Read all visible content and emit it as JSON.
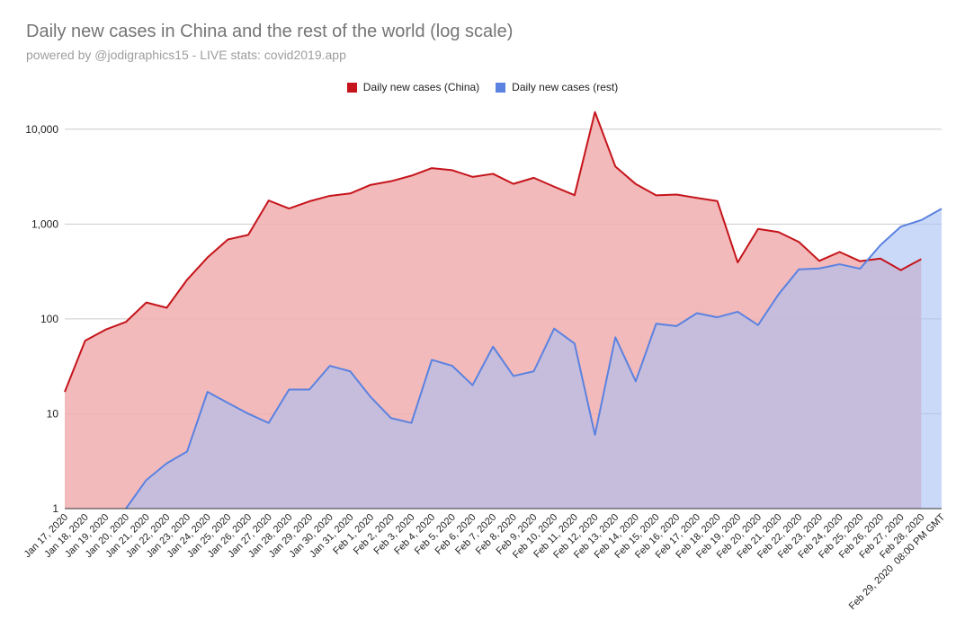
{
  "title": "Daily new cases in China and the rest of the world (log scale)",
  "subtitle": "powered by @jodigraphics15 - LIVE stats: covid2019.app",
  "colors": {
    "china_line": "#c5141b",
    "china_fill": "#f0aeae",
    "rest_line": "#5b82e0",
    "rest_fill": "#a9bff5",
    "grid": "#cccccc",
    "axis": "#333333"
  },
  "chart_data": {
    "type": "area",
    "scale": "log",
    "title": "Daily new cases in China and the rest of the world (log scale)",
    "ylim": [
      1,
      20000
    ],
    "yticks": [
      1,
      10,
      100,
      1000,
      10000
    ],
    "ytick_labels": [
      "1",
      "10",
      "100",
      "1,000",
      "10,000"
    ],
    "legend_position": "top-center",
    "grid": true,
    "categories": [
      "Jan 17, 2020",
      "Jan 18, 2020",
      "Jan 19, 2020",
      "Jan 20, 2020",
      "Jan 21, 2020",
      "Jan 22, 2020",
      "Jan 23, 2020",
      "Jan 24, 2020",
      "Jan 25, 2020",
      "Jan 26, 2020",
      "Jan 27, 2020",
      "Jan 28, 2020",
      "Jan 29, 2020",
      "Jan 30, 2020",
      "Jan 31, 2020",
      "Feb 1, 2020",
      "Feb 2, 2020",
      "Feb 3, 2020",
      "Feb 4, 2020",
      "Feb 5, 2020",
      "Feb 6, 2020",
      "Feb 7, 2020",
      "Feb 8, 2020",
      "Feb 9, 2020",
      "Feb 10, 2020",
      "Feb 11, 2020",
      "Feb 12, 2020",
      "Feb 13, 2020",
      "Feb 14, 2020",
      "Feb 15, 2020",
      "Feb 16, 2020",
      "Feb 17, 2020",
      "Feb 18, 2020",
      "Feb 19, 2020",
      "Feb 20, 2020",
      "Feb 21, 2020",
      "Feb 22, 2020",
      "Feb 23, 2020",
      "Feb 24, 2020",
      "Feb 25, 2020",
      "Feb 26, 2020",
      "Feb 27, 2020",
      "Feb 28, 2020",
      "Feb 29, 2020  08:00 PM GMT"
    ],
    "series": [
      {
        "name": "Daily new cases (China)",
        "values": [
          17,
          59,
          77,
          93,
          149,
          131,
          259,
          444,
          688,
          769,
          1771,
          1459,
          1737,
          1982,
          2102,
          2590,
          2829,
          3235,
          3887,
          3694,
          3143,
          3385,
          2652,
          3073,
          2478,
          2015,
          15152,
          4050,
          2641,
          2009,
          2048,
          1886,
          1749,
          394,
          889,
          823,
          648,
          409,
          508,
          406,
          433,
          327,
          427,
          null
        ]
      },
      {
        "name": "Daily new cases (rest)",
        "values": [
          null,
          null,
          null,
          1,
          2,
          3,
          4,
          17,
          13,
          10,
          8,
          18,
          18,
          32,
          28,
          15,
          9,
          8,
          37,
          32,
          20,
          51,
          25,
          28,
          79,
          55,
          6,
          64,
          22,
          89,
          84,
          115,
          104,
          119,
          86,
          181,
          333,
          340,
          377,
          338,
          600,
          940,
          1100,
          1450
        ]
      }
    ]
  }
}
